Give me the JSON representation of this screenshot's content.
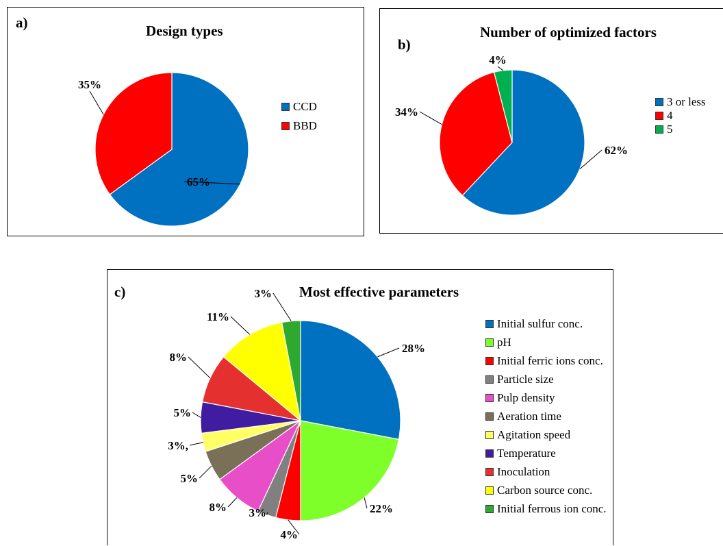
{
  "chart_data": [
    {
      "panel_label": "a)",
      "type": "pie",
      "title": "Design types",
      "legend_position": "right",
      "slices": [
        {
          "label": "CCD",
          "value": 65,
          "display": "65%",
          "color": "#0070C0"
        },
        {
          "label": "BBD",
          "value": 35,
          "display": "35%",
          "color": "#FF0000"
        }
      ]
    },
    {
      "panel_label": "b)",
      "type": "pie",
      "title": "Number of optimized factors",
      "legend_position": "right",
      "slices": [
        {
          "label": "3 or less",
          "value": 62,
          "display": "62%",
          "color": "#0070C0"
        },
        {
          "label": "4",
          "value": 34,
          "display": "34%",
          "color": "#FF0000"
        },
        {
          "label": "5",
          "value": 4,
          "display": "4%",
          "color": "#00B050"
        }
      ]
    },
    {
      "panel_label": "c)",
      "type": "pie",
      "title": "Most effective parameters",
      "legend_position": "right",
      "slices": [
        {
          "label": "Initial sulfur conc.",
          "value": 28,
          "display": "28%",
          "color": "#0070C0"
        },
        {
          "label": "pH",
          "value": 22,
          "display": "22%",
          "color": "#7FFF2A"
        },
        {
          "label": "Initial ferric ions conc.",
          "value": 4,
          "display": "4%",
          "color": "#FF0000"
        },
        {
          "label": "Particle size",
          "value": 3,
          "display": "3%",
          "color": "#808080"
        },
        {
          "label": "Pulp density",
          "value": 8,
          "display": "8%",
          "color": "#E84EC8"
        },
        {
          "label": "Aeration time",
          "value": 5,
          "display": "5%",
          "color": "#7A7058"
        },
        {
          "label": "Agitation speed",
          "value": 3,
          "display": "3%,",
          "color": "#FFFF66"
        },
        {
          "label": "Temperature",
          "value": 5,
          "display": "5%",
          "color": "#3F1CA0"
        },
        {
          "label": "Inoculation",
          "value": 8,
          "display": "8%",
          "color": "#E53030"
        },
        {
          "label": "Carbon source conc.",
          "value": 11,
          "display": "11%",
          "color": "#FFFF00"
        },
        {
          "label": "Initial ferrous ion conc.",
          "value": 3,
          "display": "3%",
          "color": "#2EA82E"
        }
      ]
    }
  ]
}
